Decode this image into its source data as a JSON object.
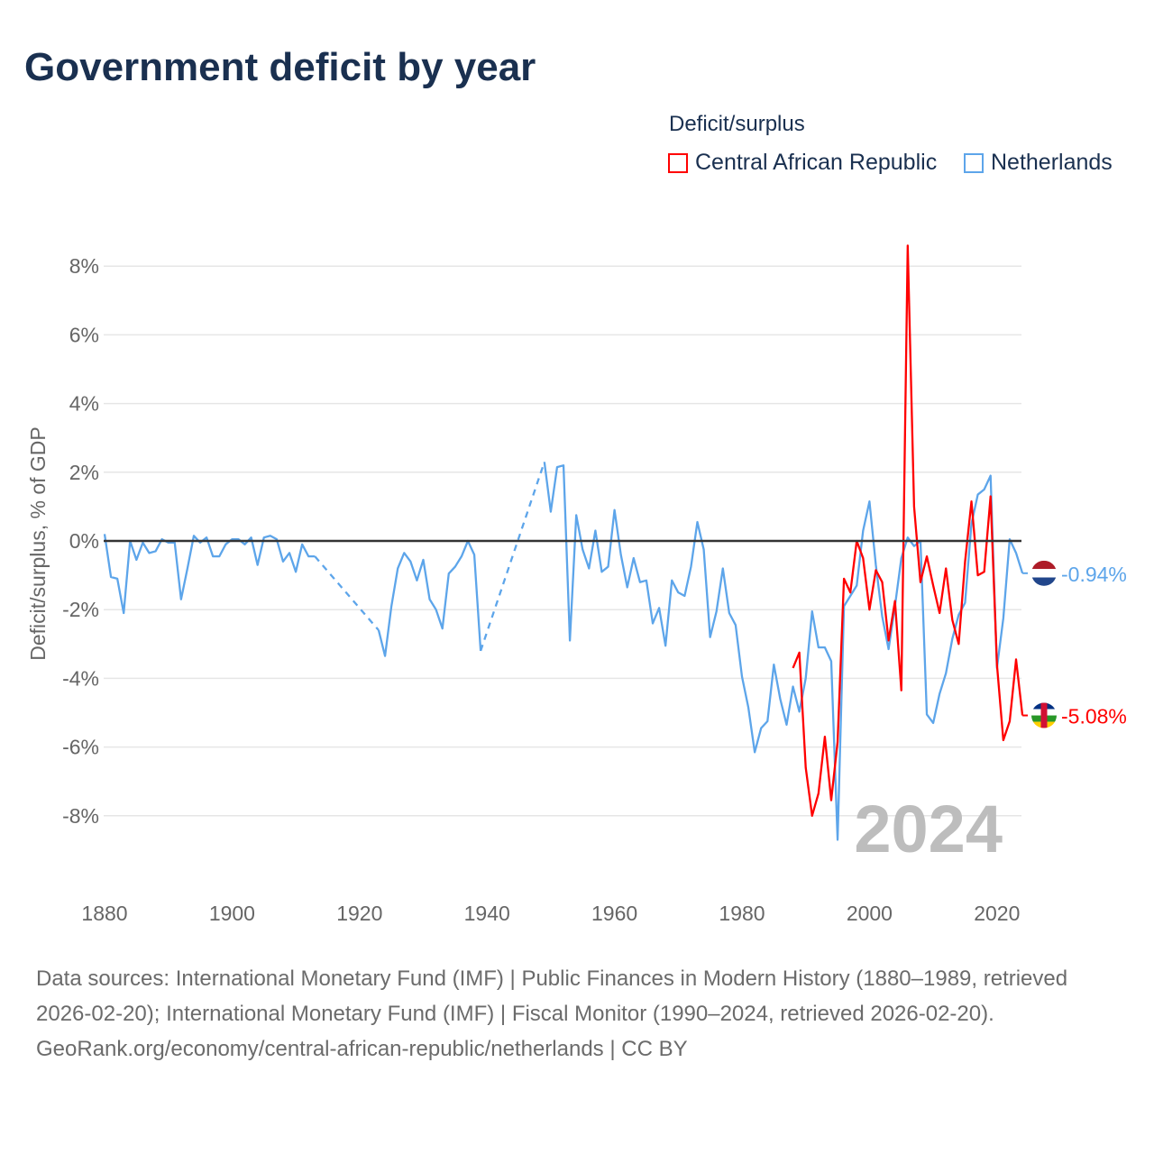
{
  "title": "Government deficit by year",
  "legend": {
    "title": "Deficit/surplus",
    "items": [
      {
        "name": "Central African Republic",
        "color": "#ff0000"
      },
      {
        "name": "Netherlands",
        "color": "#5da5ea"
      }
    ]
  },
  "footer": {
    "sources": "Data sources: International Monetary Fund (IMF) | Public Finances in Modern History (1880–1989, retrieved 2026-02-20); International Monetary Fund (IMF) | Fiscal Monitor (1990–2024, retrieved 2026-02-20).",
    "credit": "GeoRank.org/economy/central-african-republic/netherlands | CC BY"
  },
  "chart_data": {
    "type": "line",
    "title": "Government deficit by year",
    "xlabel": "",
    "ylabel": "Deficit/surplus, % of GDP",
    "xlim": [
      1880,
      2024
    ],
    "ylim": [
      -10,
      9
    ],
    "x_ticks": [
      1880,
      1900,
      1920,
      1940,
      1960,
      1980,
      2000,
      2020
    ],
    "x_tick_labels": [
      "1880",
      "1900",
      "1920",
      "1940",
      "1960",
      "1980",
      "2000",
      "2020"
    ],
    "y_ticks": [
      -8,
      -6,
      -4,
      -2,
      0,
      2,
      4,
      6,
      8
    ],
    "y_tick_labels": [
      "-8%",
      "-6%",
      "-4%",
      "-2%",
      "0%",
      "2%",
      "4%",
      "6%",
      "8%"
    ],
    "grid": true,
    "legend_position": "top-right",
    "year_label": "2024",
    "series": [
      {
        "name": "Netherlands",
        "color": "#5da5ea",
        "end_label": "-0.94%",
        "points": [
          [
            1880,
            0.2
          ],
          [
            1881,
            -1.05
          ],
          [
            1882,
            -1.1
          ],
          [
            1883,
            -2.1
          ],
          [
            1884,
            0
          ],
          [
            1885,
            -0.55
          ],
          [
            1886,
            -0.05
          ],
          [
            1887,
            -0.35
          ],
          [
            1888,
            -0.3
          ],
          [
            1889,
            0.05
          ],
          [
            1890,
            -0.05
          ],
          [
            1891,
            -0.05
          ],
          [
            1892,
            -1.7
          ],
          [
            1893,
            -0.8
          ],
          [
            1894,
            0.15
          ],
          [
            1895,
            -0.05
          ],
          [
            1896,
            0.1
          ],
          [
            1897,
            -0.45
          ],
          [
            1898,
            -0.45
          ],
          [
            1899,
            -0.1
          ],
          [
            1900,
            0.05
          ],
          [
            1901,
            0.05
          ],
          [
            1902,
            -0.1
          ],
          [
            1903,
            0.1
          ],
          [
            1904,
            -0.7
          ],
          [
            1905,
            0.1
          ],
          [
            1906,
            0.15
          ],
          [
            1907,
            0.05
          ],
          [
            1908,
            -0.6
          ],
          [
            1909,
            -0.35
          ],
          [
            1910,
            -0.9
          ],
          [
            1911,
            -0.1
          ],
          [
            1912,
            -0.45
          ],
          [
            1913,
            -0.45
          ],
          [
            1923,
            -2.6
          ],
          [
            1924,
            -3.35
          ],
          [
            1925,
            -1.9
          ],
          [
            1926,
            -0.8
          ],
          [
            1927,
            -0.35
          ],
          [
            1928,
            -0.6
          ],
          [
            1929,
            -1.15
          ],
          [
            1930,
            -0.55
          ],
          [
            1931,
            -1.7
          ],
          [
            1932,
            -2.0
          ],
          [
            1933,
            -2.55
          ],
          [
            1934,
            -0.95
          ],
          [
            1935,
            -0.75
          ],
          [
            1936,
            -0.45
          ],
          [
            1937,
            0.0
          ],
          [
            1938,
            -0.4
          ],
          [
            1939,
            -3.2
          ],
          [
            1949,
            2.3
          ],
          [
            1950,
            0.85
          ],
          [
            1951,
            2.15
          ],
          [
            1952,
            2.2
          ],
          [
            1953,
            -2.9
          ],
          [
            1954,
            0.75
          ],
          [
            1955,
            -0.25
          ],
          [
            1956,
            -0.8
          ],
          [
            1957,
            0.3
          ],
          [
            1958,
            -0.9
          ],
          [
            1959,
            -0.75
          ],
          [
            1960,
            0.9
          ],
          [
            1961,
            -0.4
          ],
          [
            1962,
            -1.35
          ],
          [
            1963,
            -0.5
          ],
          [
            1964,
            -1.2
          ],
          [
            1965,
            -1.15
          ],
          [
            1966,
            -2.4
          ],
          [
            1967,
            -1.95
          ],
          [
            1968,
            -3.05
          ],
          [
            1969,
            -1.15
          ],
          [
            1970,
            -1.5
          ],
          [
            1971,
            -1.6
          ],
          [
            1972,
            -0.75
          ],
          [
            1973,
            0.55
          ],
          [
            1974,
            -0.25
          ],
          [
            1975,
            -2.8
          ],
          [
            1976,
            -2.05
          ],
          [
            1977,
            -0.8
          ],
          [
            1978,
            -2.1
          ],
          [
            1979,
            -2.45
          ],
          [
            1980,
            -3.95
          ],
          [
            1981,
            -4.85
          ],
          [
            1982,
            -6.15
          ],
          [
            1983,
            -5.45
          ],
          [
            1984,
            -5.25
          ],
          [
            1985,
            -3.6
          ],
          [
            1986,
            -4.6
          ],
          [
            1987,
            -5.35
          ],
          [
            1988,
            -4.24
          ],
          [
            1989,
            -4.97
          ],
          [
            1990,
            -4.0
          ],
          [
            1991,
            -2.05
          ],
          [
            1992,
            -3.1
          ],
          [
            1993,
            -3.1
          ],
          [
            1994,
            -3.5
          ],
          [
            1995,
            -8.7
          ],
          [
            1996,
            -1.9
          ],
          [
            1997,
            -1.6
          ],
          [
            1998,
            -1.3
          ],
          [
            1999,
            0.3
          ],
          [
            2000,
            1.15
          ],
          [
            2001,
            -0.7
          ],
          [
            2002,
            -2.2
          ],
          [
            2003,
            -3.15
          ],
          [
            2004,
            -1.9
          ],
          [
            2005,
            -0.5
          ],
          [
            2006,
            0.1
          ],
          [
            2007,
            -0.15
          ],
          [
            2008,
            0.0
          ],
          [
            2009,
            -5.05
          ],
          [
            2010,
            -5.3
          ],
          [
            2011,
            -4.45
          ],
          [
            2012,
            -3.85
          ],
          [
            2013,
            -2.85
          ],
          [
            2014,
            -2.15
          ],
          [
            2015,
            -1.8
          ],
          [
            2016,
            0.5
          ],
          [
            2017,
            1.35
          ],
          [
            2018,
            1.5
          ],
          [
            2019,
            1.9
          ],
          [
            2020,
            -3.7
          ],
          [
            2021,
            -2.25
          ],
          [
            2022,
            0.05
          ],
          [
            2023,
            -0.35
          ],
          [
            2024,
            -0.94
          ]
        ]
      },
      {
        "name": "Central African Republic",
        "color": "#ff0000",
        "end_label": "-5.08%",
        "points": [
          [
            1988,
            -3.7
          ],
          [
            1989,
            -3.25
          ],
          [
            1990,
            -6.6
          ],
          [
            1991,
            -8.0
          ],
          [
            1992,
            -7.35
          ],
          [
            1993,
            -5.7
          ],
          [
            1994,
            -7.55
          ],
          [
            1995,
            -5.85
          ],
          [
            1996,
            -1.1
          ],
          [
            1997,
            -1.5
          ],
          [
            1998,
            0.0
          ],
          [
            1999,
            -0.5
          ],
          [
            2000,
            -2.0
          ],
          [
            2001,
            -0.85
          ],
          [
            2002,
            -1.2
          ],
          [
            2003,
            -2.9
          ],
          [
            2004,
            -1.75
          ],
          [
            2005,
            -4.35
          ],
          [
            2006,
            8.6
          ],
          [
            2007,
            1.0
          ],
          [
            2008,
            -1.2
          ],
          [
            2009,
            -0.45
          ],
          [
            2010,
            -1.3
          ],
          [
            2011,
            -2.1
          ],
          [
            2012,
            -0.8
          ],
          [
            2013,
            -2.3
          ],
          [
            2014,
            -3.0
          ],
          [
            2015,
            -0.6
          ],
          [
            2016,
            1.15
          ],
          [
            2017,
            -1.0
          ],
          [
            2018,
            -0.9
          ],
          [
            2019,
            1.3
          ],
          [
            2020,
            -3.6
          ],
          [
            2021,
            -5.8
          ],
          [
            2022,
            -5.25
          ],
          [
            2023,
            -3.45
          ],
          [
            2024,
            -5.08
          ]
        ]
      }
    ]
  }
}
